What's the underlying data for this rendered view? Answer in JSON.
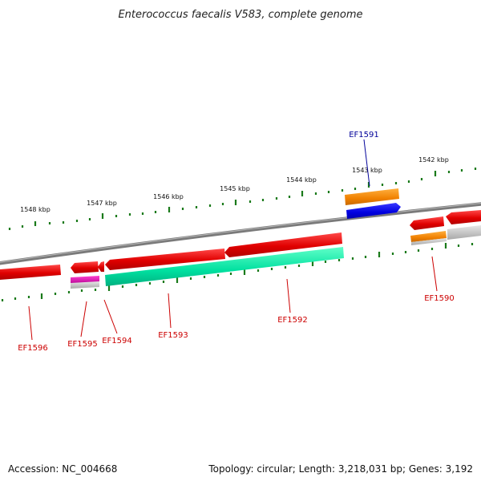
{
  "title": "Enterococcus faecalis V583, complete genome",
  "accession": "Accession: NC_004668",
  "topology": "Topology: circular; Length: 3,218,031 bp; Genes: 3,192",
  "scale_labels": [
    "1548 kbp",
    "1547 kbp",
    "1546 kbp",
    "1545 kbp",
    "1544 kbp",
    "1543 kbp",
    "1542 kbp"
  ],
  "gene_labels": [
    "EF1591",
    "EF1590",
    "EF1596",
    "EF1595",
    "EF1594",
    "EF1593",
    "EF1592"
  ],
  "colors": {
    "reverse_gene": "#e00000",
    "forward_gene": "#0000e0",
    "rna_orange": "#f08000",
    "cds_green": "#00e0a0",
    "magenta": "#d000a0",
    "backbone": "#808080",
    "tick": "#1a7a1a",
    "label_red": "#cc0000",
    "label_blue": "#000099"
  }
}
